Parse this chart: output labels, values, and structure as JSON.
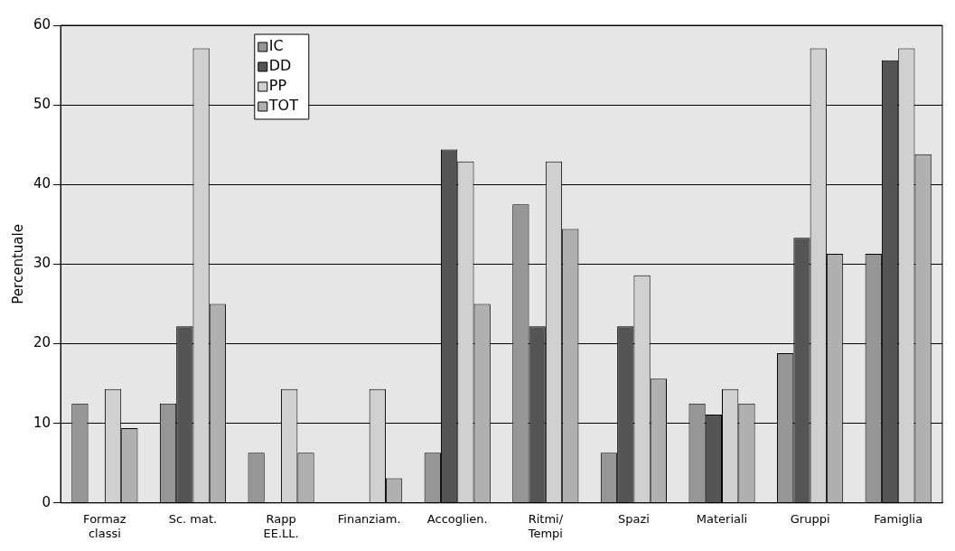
{
  "chart_data": {
    "type": "bar",
    "ylabel": "Percentuale",
    "categories": [
      "Formaz\nclassi",
      "Sc. mat.",
      "Rapp\nEE.LL.",
      "Finanziam.",
      "Accoglien.",
      "Ritmi/\nTempi",
      "Spazi",
      "Materiali",
      "Gruppi",
      "Famiglia"
    ],
    "series": [
      {
        "name": "IC",
        "color": "#969696",
        "values": [
          12.5,
          12.5,
          6.3,
          0,
          6.3,
          37.5,
          6.3,
          12.5,
          18.8,
          31.3
        ]
      },
      {
        "name": "DD",
        "color": "#555555",
        "values": [
          0,
          22.2,
          0,
          0,
          44.4,
          22.2,
          22.2,
          11.1,
          33.3,
          55.6
        ]
      },
      {
        "name": "PP",
        "color": "#d0d0d0",
        "values": [
          14.3,
          57.1,
          14.3,
          14.3,
          42.9,
          42.9,
          28.6,
          14.3,
          57.1,
          57.1
        ]
      },
      {
        "name": "TOT",
        "color": "#b0b0b0",
        "values": [
          9.4,
          25,
          6.3,
          3.1,
          25,
          34.4,
          15.6,
          12.5,
          31.3,
          43.8
        ]
      }
    ],
    "ylim": [
      0,
      60
    ],
    "yticks": [
      0,
      10,
      20,
      30,
      40,
      50,
      60
    ],
    "grid": "y",
    "legend": "top left"
  }
}
